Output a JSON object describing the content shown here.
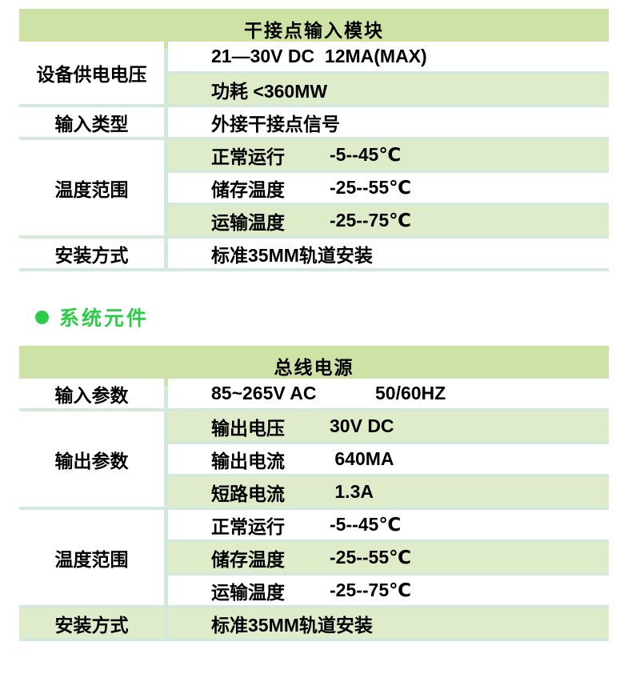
{
  "colors": {
    "table_header_bg": "#cfe2a6",
    "row_green_bg": "#dfecca",
    "grid_line": "#d4e9dc",
    "accent_green": "#2ccd46",
    "text": "#000000",
    "page_bg": "#ffffff"
  },
  "section_heading": {
    "bullet_icon": "green-dot",
    "label": "系统元件"
  },
  "table1": {
    "title": "干接点输入模块",
    "groups": [
      {
        "label": "设备供电电压"
      },
      {
        "label": "输入类型"
      },
      {
        "label": "温度范围"
      },
      {
        "label": "安装方式"
      }
    ],
    "rows": [
      {
        "text": "21—30V DC  12MA(MAX)"
      },
      {
        "text": "功耗 <360MW"
      },
      {
        "text": "外接干接点信号"
      },
      {
        "label": "正常运行",
        "value": "-5--45℃"
      },
      {
        "label": "储存温度",
        "value": "-25--55℃"
      },
      {
        "label": "运输温度",
        "value": "-25--75℃"
      },
      {
        "text": "标准35MM轨道安装"
      }
    ]
  },
  "table2": {
    "title": "总线电源",
    "groups": [
      {
        "label": "输入参数"
      },
      {
        "label": "输出参数"
      },
      {
        "label": "温度范围"
      },
      {
        "label": "安装方式"
      }
    ],
    "rows": [
      {
        "label": "85~265V AC",
        "value": "50/60HZ"
      },
      {
        "label": "输出电压",
        "value": "30V DC"
      },
      {
        "label": "输出电流",
        "value": " 640MA"
      },
      {
        "label": "短路电流",
        "value": " 1.3A"
      },
      {
        "label": "正常运行",
        "value": "-5--45℃"
      },
      {
        "label": "储存温度",
        "value": "-25--55℃"
      },
      {
        "label": "运输温度",
        "value": "-25--75℃"
      },
      {
        "text": "标准35MM轨道安装"
      }
    ]
  }
}
